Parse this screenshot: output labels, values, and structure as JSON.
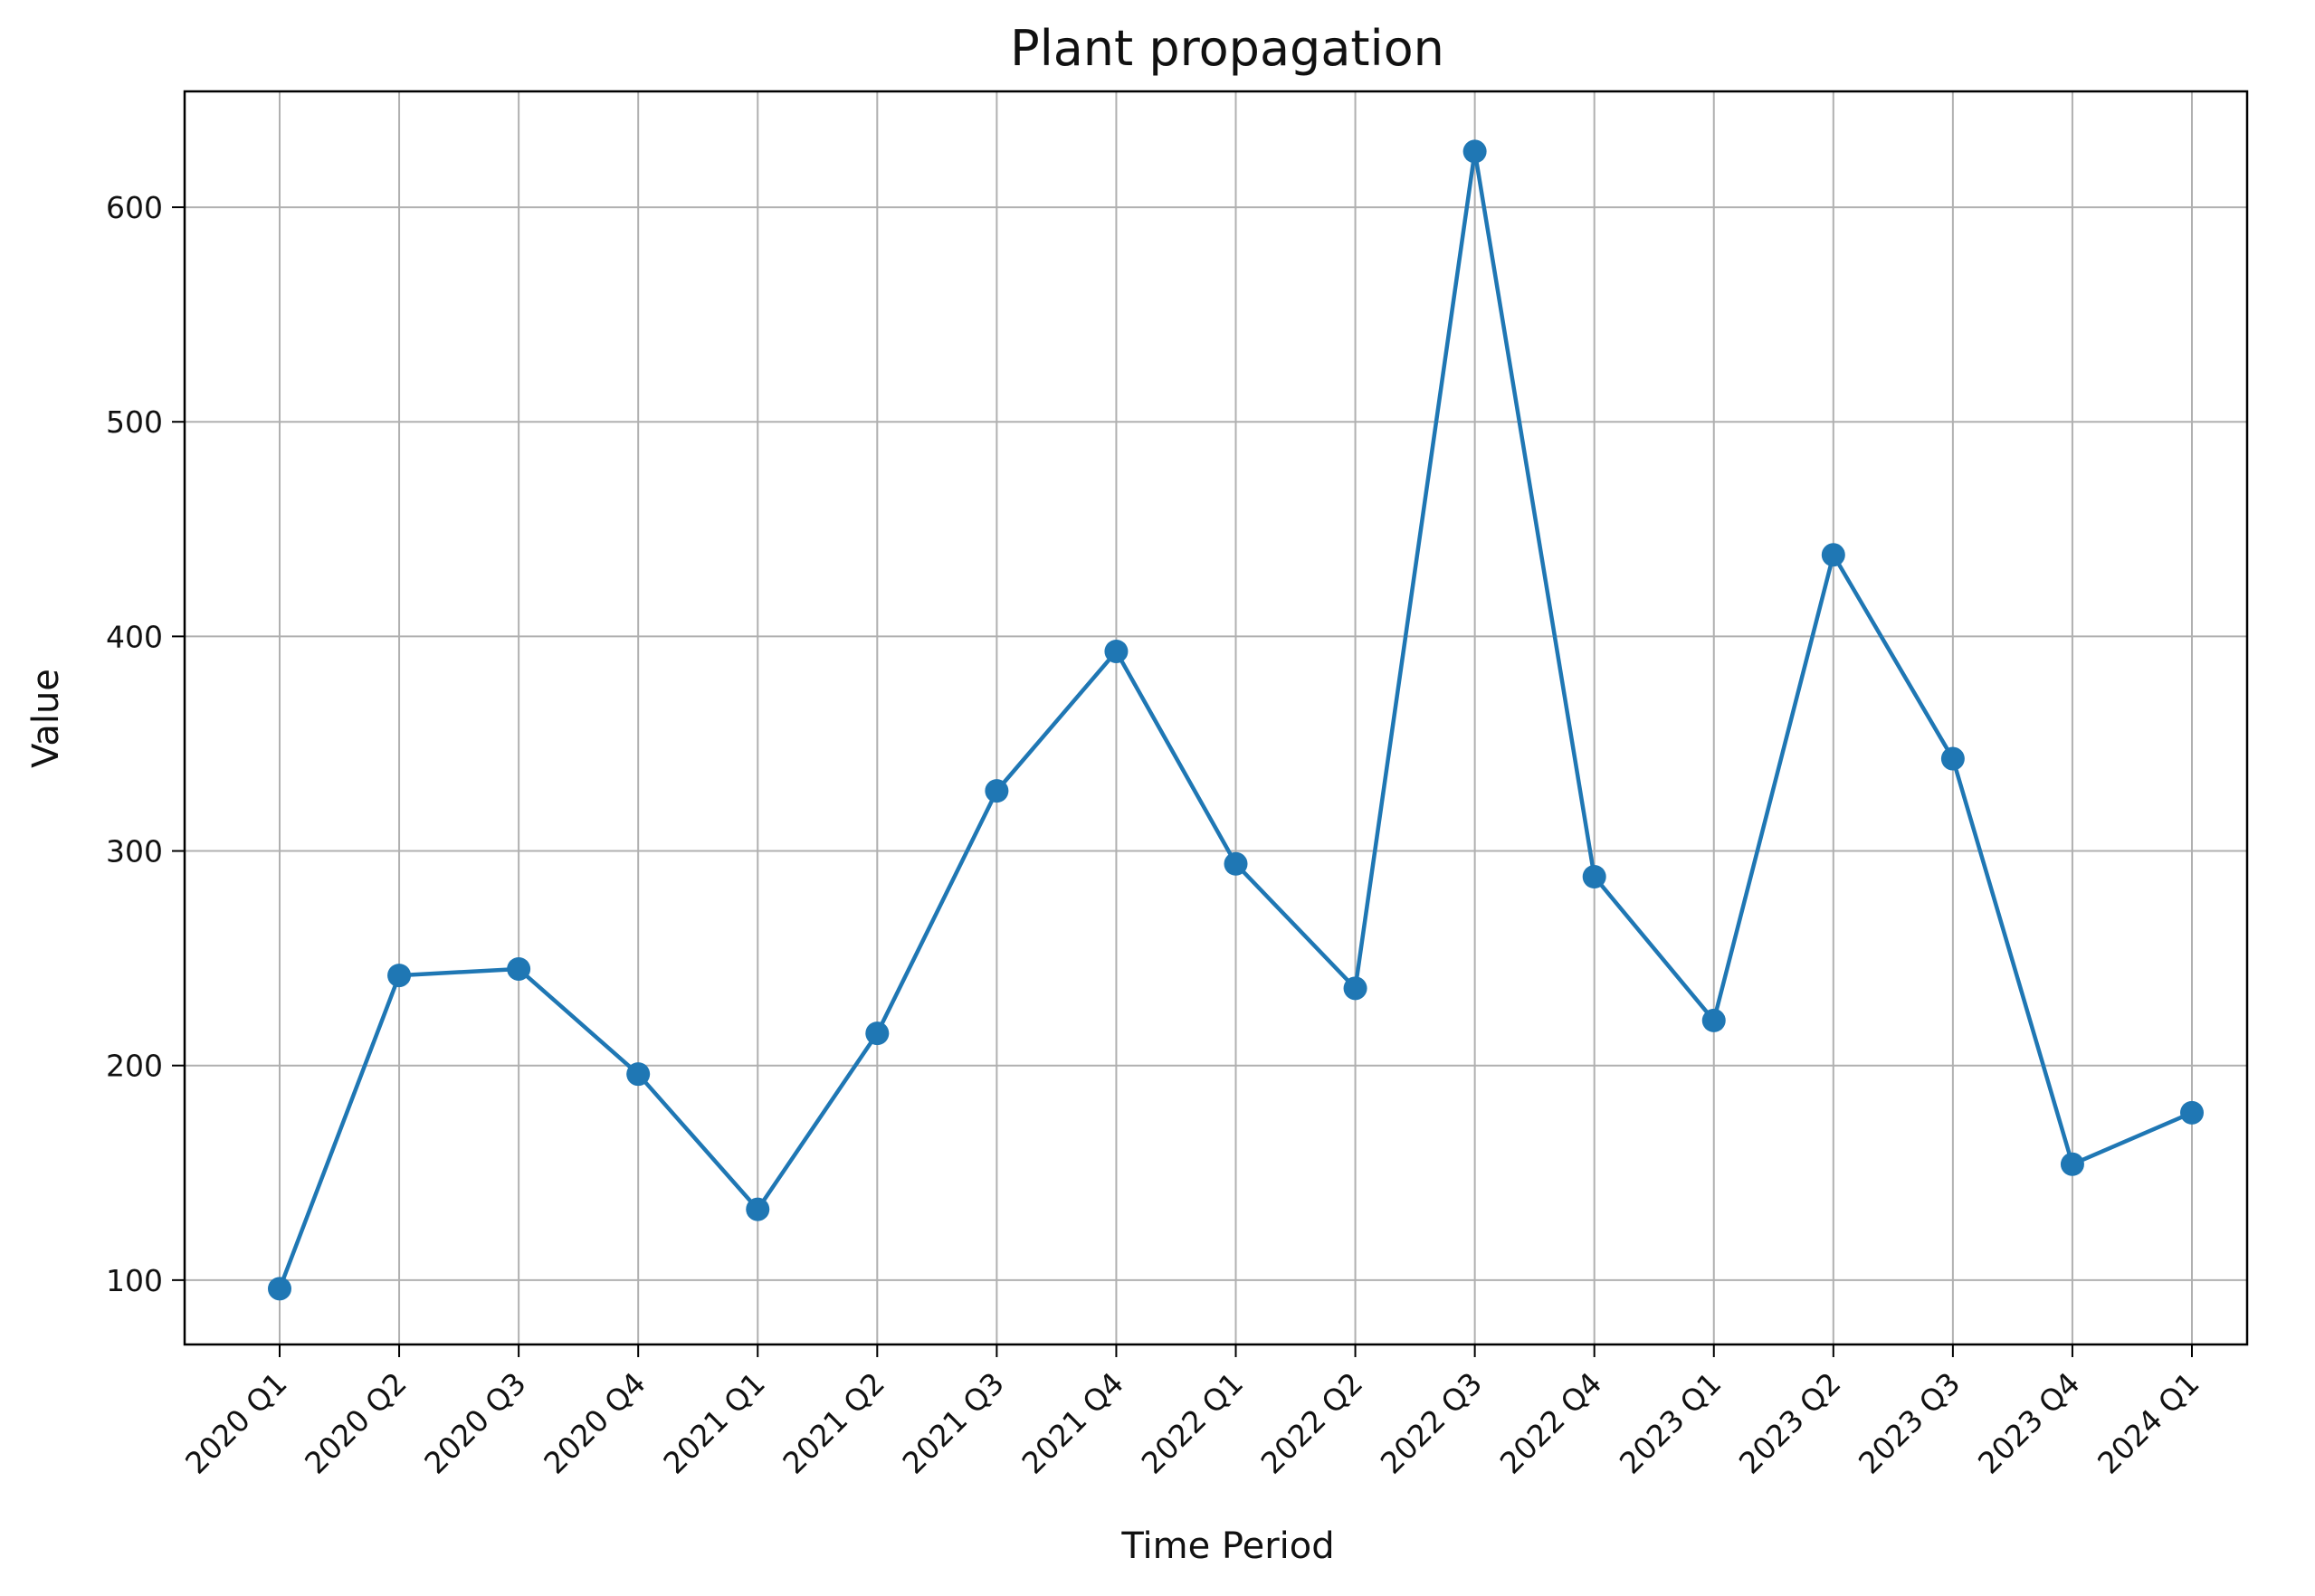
{
  "chart_data": {
    "type": "line",
    "title": "Plant propagation",
    "xlabel": "Time Period",
    "ylabel": "Value",
    "categories": [
      "2020 Q1",
      "2020 Q2",
      "2020 Q3",
      "2020 Q4",
      "2021 Q1",
      "2021 Q2",
      "2021 Q3",
      "2021 Q4",
      "2022 Q1",
      "2022 Q2",
      "2022 Q3",
      "2022 Q4",
      "2023 Q1",
      "2023 Q2",
      "2023 Q3",
      "2023 Q4",
      "2024 Q1"
    ],
    "series": [
      {
        "values": [
          96,
          242,
          245,
          196,
          133,
          215,
          328,
          393,
          294,
          236,
          626,
          288,
          221,
          438,
          343,
          154,
          178
        ],
        "color": "#1f77b4",
        "marker": "circle"
      }
    ],
    "ylim": [
      70,
      654
    ],
    "yticks": [
      100,
      200,
      300,
      400,
      500,
      600
    ],
    "grid": true,
    "legend": "none",
    "colors": {
      "line": "#1f77b4",
      "grid": "#b0b0b0",
      "axes": "#000000",
      "text": "#111111"
    }
  }
}
